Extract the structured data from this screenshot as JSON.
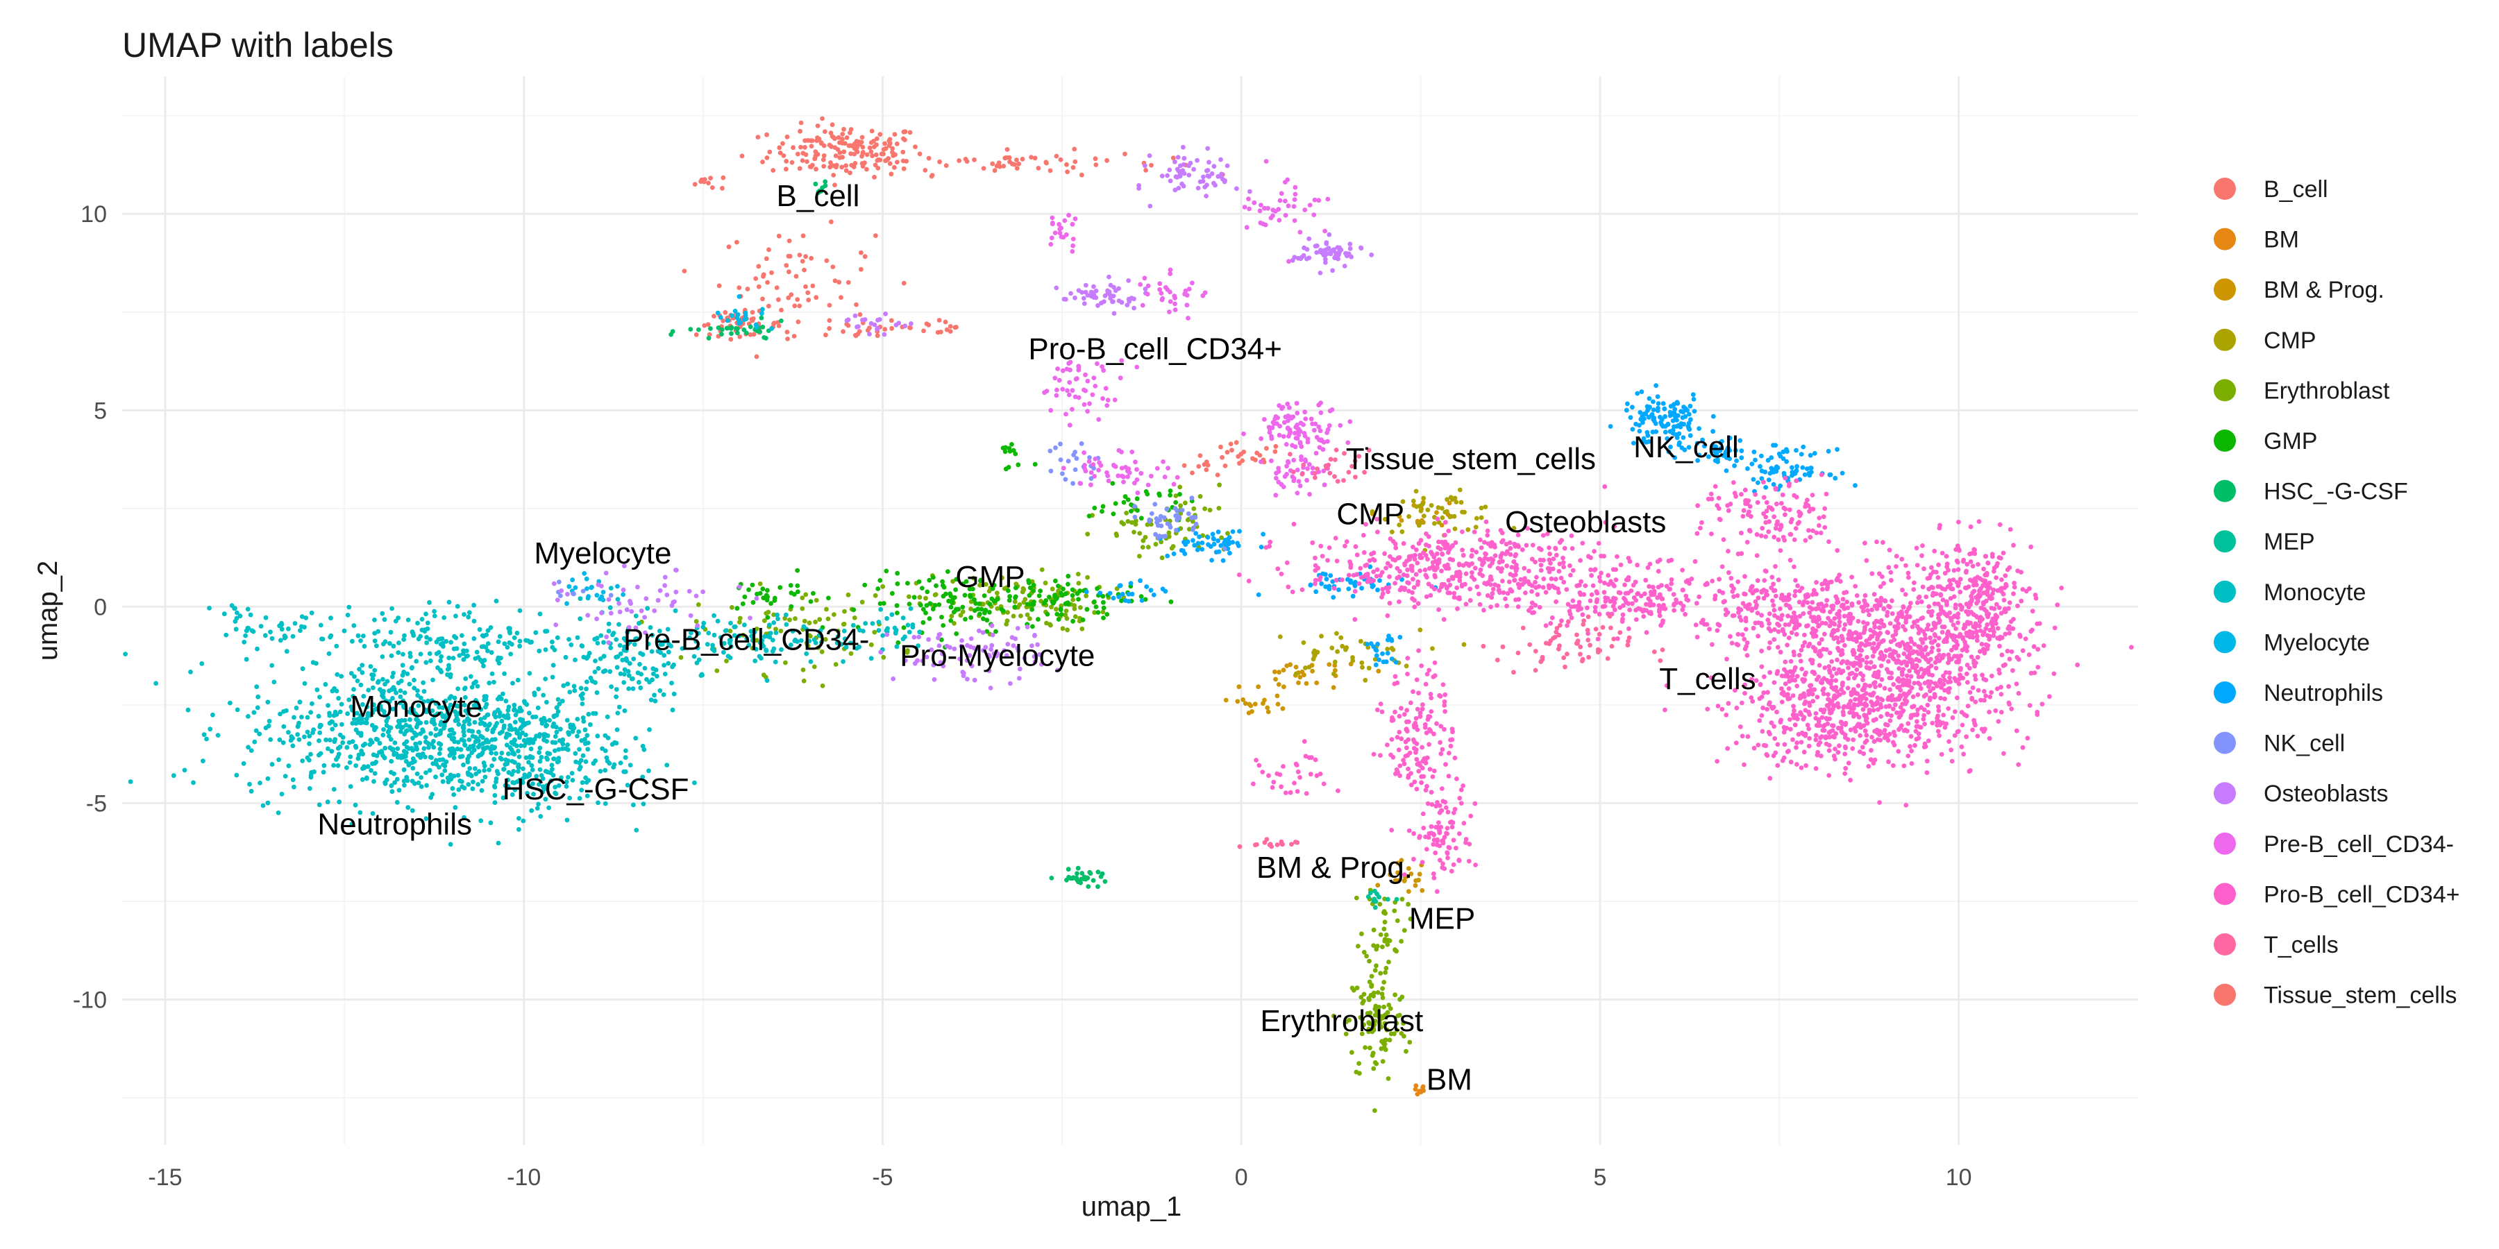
{
  "chart_data": {
    "type": "scatter",
    "title": "UMAP with labels",
    "xlabel": "umap_1",
    "ylabel": "umap_2",
    "xlim": [
      -15.6,
      12.5
    ],
    "ylim": [
      -13.7,
      13.5
    ],
    "x_ticks": [
      -15,
      -10,
      -5,
      0,
      5,
      10
    ],
    "y_ticks": [
      -10,
      -5,
      0,
      5,
      10
    ],
    "x_tick_labels": [
      "-15",
      "-10",
      "-5",
      "0",
      "5",
      "10"
    ],
    "y_tick_labels": [
      "-10",
      "-5",
      "0",
      "5",
      "10"
    ],
    "grid": true,
    "legend_position": "right",
    "series": [
      {
        "name": "B_cell",
        "color": "#F8766D",
        "regions": [
          [
            -5.5,
            11.6,
            0.9,
            0.55,
            160
          ],
          [
            -3.2,
            11.3,
            1.8,
            0.25,
            60
          ],
          [
            -6.2,
            8.4,
            0.9,
            1.0,
            60
          ],
          [
            -7.0,
            7.2,
            0.5,
            0.25,
            50
          ],
          [
            -5.0,
            7.1,
            1.4,
            0.3,
            40
          ],
          [
            -7.4,
            10.8,
            0.3,
            0.15,
            10
          ],
          [
            0.0,
            3.8,
            0.5,
            0.3,
            20
          ]
        ]
      },
      {
        "name": "BM",
        "color": "#E68613",
        "regions": [
          [
            2.5,
            -12.3,
            0.08,
            0.12,
            8
          ]
        ]
      },
      {
        "name": "BM & Prog.",
        "color": "#CD9600",
        "regions": [
          [
            2.3,
            -6.9,
            0.25,
            0.35,
            20
          ],
          [
            0.9,
            -1.8,
            0.7,
            0.4,
            30
          ],
          [
            0.3,
            -2.5,
            0.3,
            0.2,
            15
          ],
          [
            2.5,
            2.4,
            0.5,
            0.3,
            15
          ]
        ]
      },
      {
        "name": "CMP",
        "color": "#ABA300",
        "regions": [
          [
            2.8,
            2.4,
            0.7,
            0.4,
            50
          ],
          [
            1.4,
            -1.2,
            0.9,
            0.5,
            40
          ]
        ]
      },
      {
        "name": "Erythroblast",
        "color": "#7CAE00",
        "regions": [
          [
            1.9,
            -10.6,
            0.35,
            1.3,
            110
          ],
          [
            2.0,
            -8.0,
            0.25,
            0.9,
            40
          ],
          [
            -3.2,
            0.1,
            1.1,
            0.6,
            120
          ],
          [
            -1.2,
            1.8,
            0.7,
            0.6,
            40
          ],
          [
            -0.6,
            2.3,
            0.5,
            0.8,
            25
          ],
          [
            -6.2,
            -0.6,
            1.2,
            0.9,
            80
          ]
        ]
      },
      {
        "name": "GMP",
        "color": "#0CB702",
        "regions": [
          [
            -3.8,
            0.1,
            1.2,
            0.6,
            120
          ],
          [
            -2.3,
            0.2,
            0.8,
            0.4,
            60
          ],
          [
            -1.4,
            2.6,
            0.6,
            0.4,
            30
          ],
          [
            -3.2,
            3.8,
            0.2,
            0.4,
            12
          ],
          [
            -6.6,
            0.3,
            0.6,
            0.4,
            30
          ]
        ]
      },
      {
        "name": "HSC_-G-CSF",
        "color": "#00BE67",
        "regions": [
          [
            -2.2,
            -6.9,
            0.3,
            0.15,
            30
          ],
          [
            -7.0,
            7.0,
            0.6,
            0.2,
            30
          ],
          [
            -5.9,
            10.6,
            0.1,
            0.2,
            8
          ]
        ]
      },
      {
        "name": "MEP",
        "color": "#00C19A",
        "regions": [
          [
            1.9,
            -7.4,
            0.15,
            0.2,
            12
          ]
        ]
      },
      {
        "name": "Monocyte",
        "color": "#00BFC4",
        "regions": [
          [
            -11.7,
            -3.1,
            1.9,
            1.5,
            650
          ],
          [
            -10.2,
            -3.7,
            1.3,
            1.3,
            380
          ],
          [
            -10.9,
            -0.8,
            1.3,
            0.7,
            150
          ],
          [
            -13.4,
            -0.6,
            0.7,
            0.4,
            40
          ],
          [
            -14.1,
            -0.1,
            0.2,
            0.15,
            10
          ],
          [
            -8.6,
            -1.3,
            0.7,
            1.2,
            140
          ],
          [
            -6.8,
            -0.9,
            0.9,
            0.6,
            90
          ],
          [
            -4.9,
            -0.7,
            0.6,
            0.4,
            40
          ]
        ]
      },
      {
        "name": "Myelocyte",
        "color": "#00B8E7",
        "regions": [
          [
            -9.0,
            0.4,
            0.4,
            0.3,
            20
          ],
          [
            -6.9,
            7.3,
            0.4,
            0.3,
            20
          ]
        ]
      },
      {
        "name": "Neutrophils",
        "color": "#00A9FF",
        "regions": [
          [
            5.9,
            4.7,
            0.5,
            0.6,
            120
          ],
          [
            6.7,
            4.0,
            0.4,
            0.3,
            40
          ],
          [
            7.6,
            3.5,
            0.5,
            0.4,
            70
          ],
          [
            -0.4,
            1.6,
            0.5,
            0.3,
            50
          ],
          [
            1.4,
            0.6,
            0.8,
            0.25,
            40
          ],
          [
            2.0,
            -1.2,
            0.2,
            0.5,
            20
          ],
          [
            -1.6,
            0.3,
            0.4,
            0.3,
            20
          ]
        ]
      },
      {
        "name": "NK_cell",
        "color": "#8494FF",
        "regions": [
          [
            -1.0,
            2.2,
            0.5,
            0.4,
            40
          ],
          [
            -2.4,
            3.6,
            0.4,
            0.5,
            20
          ],
          [
            -9.3,
            0.4,
            0.2,
            0.2,
            8
          ]
        ]
      },
      {
        "name": "Osteoblasts",
        "color": "#C77CFF",
        "regions": [
          [
            -0.6,
            11.0,
            0.5,
            0.5,
            60
          ],
          [
            1.2,
            9.0,
            0.4,
            0.3,
            60
          ],
          [
            -1.9,
            7.9,
            0.5,
            0.3,
            50
          ],
          [
            -3.8,
            -1.2,
            0.9,
            0.6,
            80
          ],
          [
            -8.3,
            0.0,
            1.0,
            0.7,
            50
          ],
          [
            -5.1,
            7.2,
            0.4,
            0.2,
            20
          ]
        ]
      },
      {
        "name": "Pre-B_cell_CD34-",
        "color": "#ED68ED",
        "regions": [
          [
            0.8,
            4.6,
            0.5,
            0.5,
            90
          ],
          [
            0.8,
            3.4,
            0.4,
            0.4,
            40
          ],
          [
            -2.2,
            5.6,
            0.5,
            0.6,
            50
          ],
          [
            -1.7,
            3.5,
            0.6,
            0.4,
            50
          ],
          [
            0.6,
            10.2,
            0.5,
            0.8,
            40
          ],
          [
            -1.0,
            8.0,
            0.4,
            0.5,
            30
          ],
          [
            -2.5,
            9.5,
            0.2,
            0.4,
            20
          ]
        ]
      },
      {
        "name": "Pro-B_cell_CD34+",
        "color": "#FF61CC",
        "regions": [
          [
            9.2,
            -1.4,
            1.5,
            1.8,
            900
          ],
          [
            8.3,
            -2.8,
            1.3,
            1.1,
            350
          ],
          [
            10.2,
            0.3,
            0.7,
            1.2,
            250
          ],
          [
            7.8,
            -0.2,
            0.9,
            0.9,
            200
          ],
          [
            5.6,
            0.2,
            1.5,
            0.7,
            250
          ],
          [
            3.0,
            1.0,
            1.8,
            0.8,
            450
          ],
          [
            2.5,
            -3.2,
            0.4,
            1.4,
            140
          ],
          [
            2.8,
            -5.8,
            0.4,
            1.0,
            90
          ],
          [
            7.4,
            2.3,
            0.8,
            0.8,
            120
          ],
          [
            0.7,
            -4.3,
            0.5,
            0.6,
            30
          ]
        ]
      },
      {
        "name": "T_cells",
        "color": "#FF68A1",
        "regions": [
          [
            0.4,
            -6.1,
            0.3,
            0.15,
            15
          ],
          [
            4.5,
            -1.0,
            0.8,
            0.6,
            60
          ],
          [
            1.3,
            3.5,
            0.4,
            0.4,
            25
          ]
        ]
      },
      {
        "name": "Tissue_stem_cells",
        "color": "#F8766D",
        "regions": [
          [
            -0.6,
            3.6,
            0.3,
            0.3,
            10
          ]
        ]
      }
    ],
    "labels": [
      {
        "text": "B_cell",
        "x": -5.9,
        "y": 10.2
      },
      {
        "text": "Pro-B_cell_CD34+",
        "x": -1.2,
        "y": 6.3
      },
      {
        "text": "Tissue_stem_cells",
        "x": 3.2,
        "y": 3.5
      },
      {
        "text": "NK_cell",
        "x": 6.2,
        "y": 3.8
      },
      {
        "text": "CMP",
        "x": 1.8,
        "y": 2.1
      },
      {
        "text": "Osteoblasts",
        "x": 4.8,
        "y": 1.9
      },
      {
        "text": "Myelocyte",
        "x": -8.9,
        "y": 1.1
      },
      {
        "text": "GMP",
        "x": -3.5,
        "y": 0.5
      },
      {
        "text": "Pre-B_cell_CD34-",
        "x": -6.9,
        "y": -1.1
      },
      {
        "text": "Pro-Myelocyte",
        "x": -3.4,
        "y": -1.5
      },
      {
        "text": "T_cells",
        "x": 6.5,
        "y": -2.1
      },
      {
        "text": "Monocyte",
        "x": -11.5,
        "y": -2.8
      },
      {
        "text": "HSC_-G-CSF",
        "x": -9.0,
        "y": -4.9
      },
      {
        "text": "Neutrophils",
        "x": -11.8,
        "y": -5.8
      },
      {
        "text": "BM & Prog.",
        "x": 1.3,
        "y": -6.9
      },
      {
        "text": "MEP",
        "x": 2.8,
        "y": -8.2
      },
      {
        "text": "Erythroblast",
        "x": 1.4,
        "y": -10.8
      },
      {
        "text": "BM",
        "x": 2.9,
        "y": -12.3
      }
    ]
  }
}
